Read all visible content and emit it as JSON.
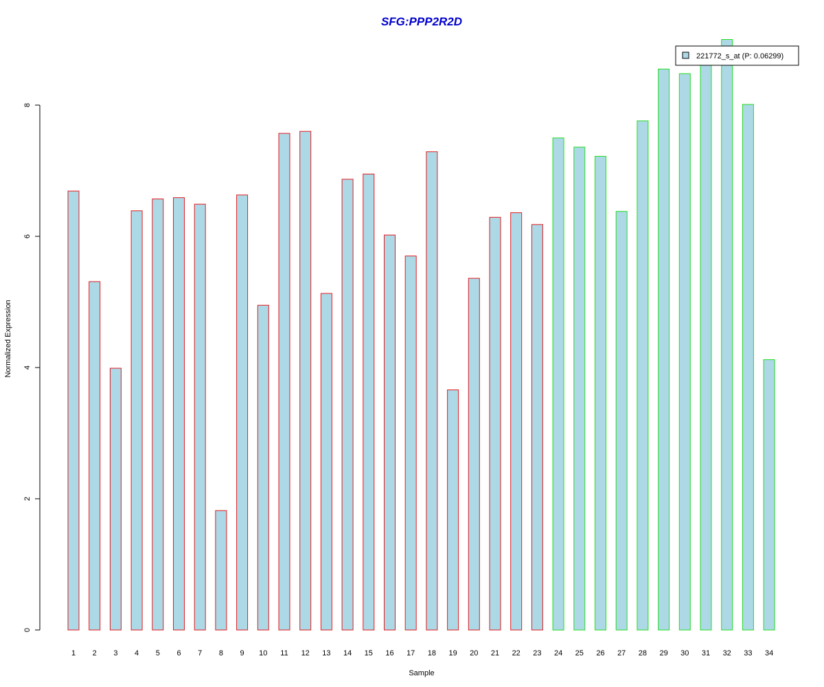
{
  "chart_data": {
    "type": "bar",
    "title": "SFG:PPP2R2D",
    "xlabel": "Sample",
    "ylabel": "Normalized Expression",
    "ylim": [
      0,
      9.0
    ],
    "yticks": [
      0,
      2,
      4,
      6,
      8
    ],
    "categories": [
      "1",
      "2",
      "3",
      "4",
      "5",
      "6",
      "7",
      "8",
      "9",
      "10",
      "11",
      "12",
      "13",
      "14",
      "15",
      "16",
      "17",
      "18",
      "19",
      "20",
      "21",
      "22",
      "23",
      "24",
      "25",
      "26",
      "27",
      "28",
      "29",
      "30",
      "31",
      "32",
      "33",
      "34"
    ],
    "series": [
      {
        "name": "221772_s_at (P: 0.06299)",
        "values": [
          6.69,
          5.31,
          3.99,
          6.39,
          6.57,
          6.59,
          6.49,
          1.82,
          6.63,
          4.95,
          7.57,
          7.6,
          5.13,
          6.87,
          6.95,
          6.02,
          5.7,
          7.29,
          3.66,
          5.36,
          6.29,
          6.36,
          6.18,
          7.5,
          7.36,
          7.22,
          6.38,
          7.76,
          8.55,
          8.48,
          8.7,
          9.0,
          8.01,
          4.12
        ]
      }
    ],
    "group_by_sample": [
      "red",
      "red",
      "red",
      "red",
      "red",
      "red",
      "red",
      "red",
      "red",
      "red",
      "red",
      "red",
      "red",
      "red",
      "red",
      "red",
      "red",
      "red",
      "red",
      "red",
      "red",
      "red",
      "red",
      "green",
      "green",
      "green",
      "green",
      "green",
      "green",
      "green",
      "green",
      "green",
      "green",
      "green"
    ],
    "legend_position": "top-right",
    "grid": false
  },
  "colors": {
    "bar_fill": "#add8e6",
    "red": "#e31a1c",
    "green": "#22dd22",
    "title": "#0000cc",
    "axis": "#000000"
  }
}
